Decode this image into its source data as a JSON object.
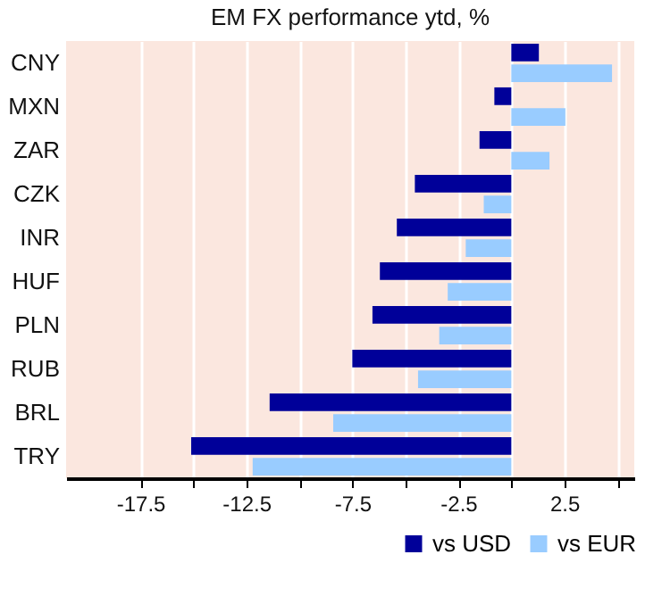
{
  "chart_data": {
    "type": "bar",
    "orientation": "horizontal",
    "title": "EM FX performance ytd, %",
    "categories": [
      "CNY",
      "MXN",
      "ZAR",
      "CZK",
      "INR",
      "HUF",
      "PLN",
      "RUB",
      "BRL",
      "TRY"
    ],
    "series": [
      {
        "name": "vs USD",
        "color": "#000099",
        "values": [
          1.3,
          -0.8,
          -1.5,
          -4.55,
          -5.4,
          -6.2,
          -6.55,
          -7.5,
          -11.4,
          -15.1
        ]
      },
      {
        "name": "vs EUR",
        "color": "#99ccff",
        "values": [
          4.75,
          2.55,
          1.8,
          -1.3,
          -2.15,
          -3.0,
          -3.4,
          -4.4,
          -8.4,
          -12.2
        ]
      }
    ],
    "xlim": [
      -21,
      5.8
    ],
    "xticks": [
      -17.5,
      {
        "value": -15,
        "label": null
      },
      -12.5,
      {
        "value": -10,
        "label": null
      },
      -7.5,
      {
        "value": -5,
        "label": null
      },
      -2.5,
      {
        "value": 0,
        "label": null
      },
      2.5,
      {
        "value": 5,
        "label": null
      }
    ],
    "grid": "x",
    "legend": "bottom right"
  }
}
